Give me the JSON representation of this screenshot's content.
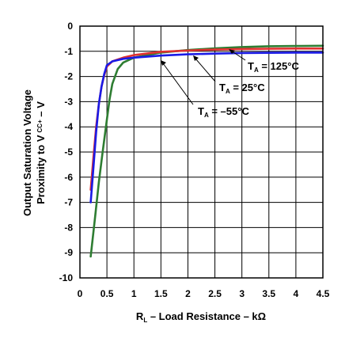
{
  "chart_data": {
    "type": "line",
    "xlabel": "R_L – Load Resistance – kΩ",
    "xlabel_main": "R",
    "xlabel_sub": "L",
    "xlabel_rest": " – Load Resistance – kΩ",
    "ylabel_line1": "Output Saturation Voltage",
    "ylabel_line2_main": "Proximity to V",
    "ylabel_line2_sub": "CC+",
    "ylabel_line2_rest": " – V",
    "xlim": [
      0,
      4.5
    ],
    "ylim": [
      -10,
      0
    ],
    "x_ticks": [
      "0",
      "0.5",
      "1",
      "1.5",
      "2",
      "2.5",
      "3",
      "3.5",
      "4",
      "4.5"
    ],
    "y_ticks": [
      "0",
      "-1",
      "-2",
      "-3",
      "-4",
      "-5",
      "-6",
      "-7",
      "-8",
      "-9",
      "-10"
    ],
    "grid": true,
    "series": [
      {
        "name": "T_A = 125°C",
        "label_main": "T",
        "label_sub": "A",
        "label_rest": " = 125°C",
        "color": "#2e7d32",
        "points": [
          [
            0.2,
            -9.15
          ],
          [
            0.28,
            -7.6
          ],
          [
            0.35,
            -6.2
          ],
          [
            0.42,
            -5.0
          ],
          [
            0.5,
            -3.7
          ],
          [
            0.55,
            -2.9
          ],
          [
            0.6,
            -2.3
          ],
          [
            0.7,
            -1.7
          ],
          [
            0.8,
            -1.45
          ],
          [
            1.0,
            -1.25
          ],
          [
            1.5,
            -1.05
          ],
          [
            2.0,
            -0.95
          ],
          [
            2.5,
            -0.88
          ],
          [
            3.0,
            -0.83
          ],
          [
            3.5,
            -0.8
          ],
          [
            4.0,
            -0.79
          ],
          [
            4.5,
            -0.78
          ]
        ]
      },
      {
        "name": "T_A = 25°C",
        "label_main": "T",
        "label_sub": "A",
        "label_rest": " = 25°C",
        "color": "#e03030",
        "points": [
          [
            0.2,
            -6.5
          ],
          [
            0.25,
            -5.2
          ],
          [
            0.3,
            -4.0
          ],
          [
            0.35,
            -3.1
          ],
          [
            0.4,
            -2.4
          ],
          [
            0.45,
            -1.95
          ],
          [
            0.5,
            -1.6
          ],
          [
            0.6,
            -1.4
          ],
          [
            0.8,
            -1.25
          ],
          [
            1.0,
            -1.15
          ],
          [
            1.5,
            -1.02
          ],
          [
            2.0,
            -0.97
          ],
          [
            2.5,
            -0.93
          ],
          [
            3.0,
            -0.91
          ],
          [
            3.5,
            -0.9
          ],
          [
            4.0,
            -0.89
          ],
          [
            4.5,
            -0.89
          ]
        ]
      },
      {
        "name": "T_A = –55°C",
        "label_main": "T",
        "label_sub": "A",
        "label_rest": " = –55°C",
        "color": "#1a1ae6",
        "points": [
          [
            0.2,
            -7.0
          ],
          [
            0.25,
            -5.6
          ],
          [
            0.3,
            -4.2
          ],
          [
            0.35,
            -3.1
          ],
          [
            0.4,
            -2.4
          ],
          [
            0.45,
            -1.9
          ],
          [
            0.5,
            -1.55
          ],
          [
            0.6,
            -1.4
          ],
          [
            0.8,
            -1.3
          ],
          [
            1.0,
            -1.25
          ],
          [
            1.5,
            -1.17
          ],
          [
            2.0,
            -1.12
          ],
          [
            2.5,
            -1.09
          ],
          [
            3.0,
            -1.07
          ],
          [
            3.5,
            -1.06
          ],
          [
            4.0,
            -1.05
          ],
          [
            4.5,
            -1.05
          ]
        ]
      }
    ]
  }
}
